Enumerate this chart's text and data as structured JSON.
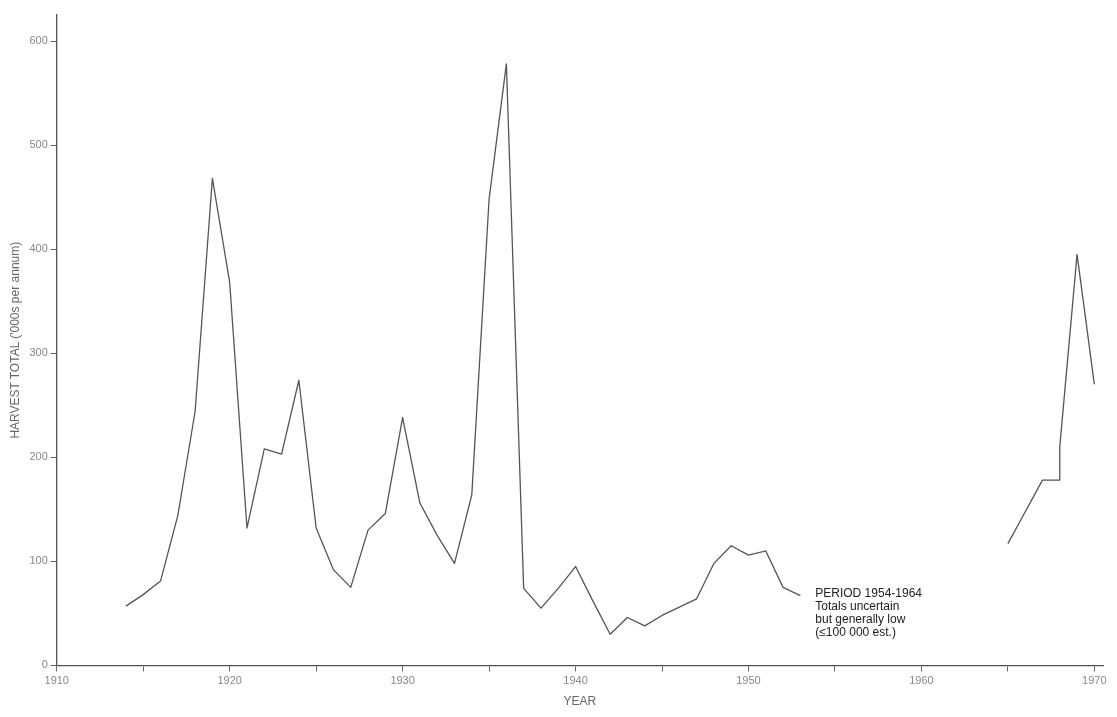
{
  "chart_data": {
    "type": "line",
    "xlabel": "YEAR",
    "ylabel": "HARVEST TOTAL ('000s per annum)",
    "x": [
      1914,
      1915,
      1916,
      1917,
      1918,
      1919,
      1920,
      1921,
      1922,
      1923,
      1924,
      1925,
      1926,
      1927,
      1928,
      1929,
      1930,
      1931,
      1932,
      1933,
      1934,
      1935,
      1936,
      1937,
      1938,
      1939,
      1940,
      1941,
      1942,
      1943,
      1944,
      1945,
      1946,
      1947,
      1948,
      1949,
      1950,
      1951,
      1952,
      1953,
      1954,
      1965,
      1967,
      1968,
      1968,
      1969,
      1970
    ],
    "series": [
      {
        "color": "#555555",
        "values": [
          57,
          68,
          81,
          144,
          244,
          468,
          368,
          132,
          208,
          203,
          274,
          132,
          92,
          75,
          130,
          146,
          238,
          156,
          125,
          98,
          164,
          448,
          578,
          74,
          55,
          74,
          95,
          62,
          30,
          46,
          38,
          48,
          56,
          64,
          98,
          115,
          106,
          110,
          75,
          67,
          null,
          117,
          178,
          178,
          210,
          395,
          270
        ]
      }
    ],
    "xlim": [
      1910,
      1970.5
    ],
    "ylim": [
      0,
      625
    ],
    "xticks": [
      1910,
      {
        "value": 1915,
        "label": null
      },
      1920,
      {
        "value": 1925,
        "label": null
      },
      1930,
      {
        "value": 1935,
        "label": null
      },
      1940,
      {
        "value": 1945,
        "label": null
      },
      1950,
      {
        "value": 1955,
        "label": null
      },
      1960,
      {
        "value": 1965,
        "label": null
      },
      1970
    ],
    "yticks": [
      0,
      100,
      200,
      300,
      400,
      500,
      600
    ],
    "grid": false,
    "legend": false,
    "marker": "none",
    "line_style": "solid",
    "annotations": [
      "PERIOD 1954-1964\nTotals uncertain\nbut generally low\n(≤100 000 est.)"
    ]
  }
}
